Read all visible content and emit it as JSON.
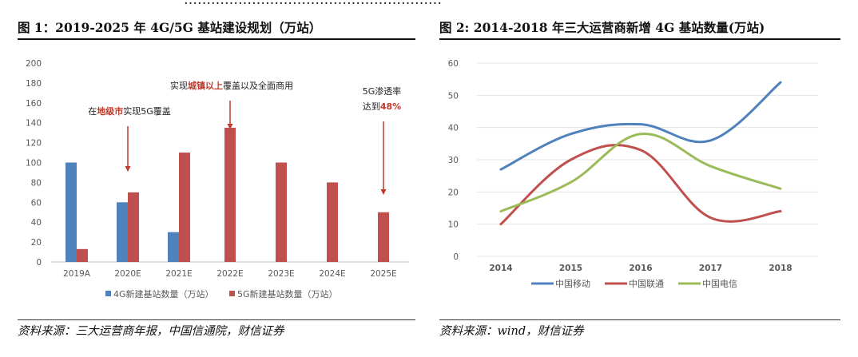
{
  "header_line": "…………………………………………………",
  "chart_data": [
    {
      "type": "bar",
      "title": "图 1：2019-2025 年 4G/5G 基站建设规划（万站）",
      "source": "资料来源：三大运营商年报，中国信通院，财信证券",
      "categories": [
        "2019A",
        "2020E",
        "2021E",
        "2022E",
        "2023E",
        "2024E",
        "2025E"
      ],
      "series": [
        {
          "name": "4G新建基站数量（万站）",
          "color": "#4f81bd",
          "values": [
            100,
            60,
            30,
            null,
            null,
            null,
            null
          ]
        },
        {
          "name": "5G新建基站数量（万站）",
          "color": "#c0504d",
          "values": [
            13,
            70,
            110,
            135,
            100,
            80,
            50
          ]
        }
      ],
      "ylim": [
        0,
        200
      ],
      "yticks": [
        0,
        20,
        40,
        60,
        80,
        100,
        120,
        140,
        160,
        180,
        200
      ],
      "legend": "bottom",
      "annotations": [
        {
          "parts": [
            {
              "t": "在",
              "hl": false
            },
            {
              "t": "地级市",
              "hl": true
            },
            {
              "t": "实现5G覆盖",
              "hl": false
            }
          ],
          "category": "2020E"
        },
        {
          "parts": [
            {
              "t": "实现",
              "hl": false
            },
            {
              "t": "城镇以上",
              "hl": true
            },
            {
              "t": "覆盖以及全面商用",
              "hl": false
            }
          ],
          "category": "2022E"
        },
        {
          "parts": [
            {
              "t": "5G渗透率",
              "hl": false
            }
          ],
          "line2": [
            {
              "t": "达到",
              "hl": false
            },
            {
              "t": "48%",
              "hl": true
            }
          ],
          "category": "2025E"
        }
      ]
    },
    {
      "type": "line",
      "title": "图 2: 2014-2018 年三大运营商新增 4G 基站数量(万站)",
      "source": "资料来源：wind，财信证券",
      "x": [
        "2014",
        "2015",
        "2016",
        "2017",
        "2018"
      ],
      "series": [
        {
          "name": "中国移动",
          "color": "#4f81bd",
          "values": [
            27,
            38,
            41,
            36,
            54
          ]
        },
        {
          "name": "中国联通",
          "color": "#c0504d",
          "values": [
            10,
            30,
            33,
            12,
            14
          ]
        },
        {
          "name": "中国电信",
          "color": "#9bbb59",
          "values": [
            14,
            23,
            38,
            28,
            21
          ]
        }
      ],
      "ylim": [
        0,
        60
      ],
      "yticks": [
        0,
        10,
        20,
        30,
        40,
        50,
        60
      ],
      "grid": true,
      "legend": "bottom"
    }
  ]
}
